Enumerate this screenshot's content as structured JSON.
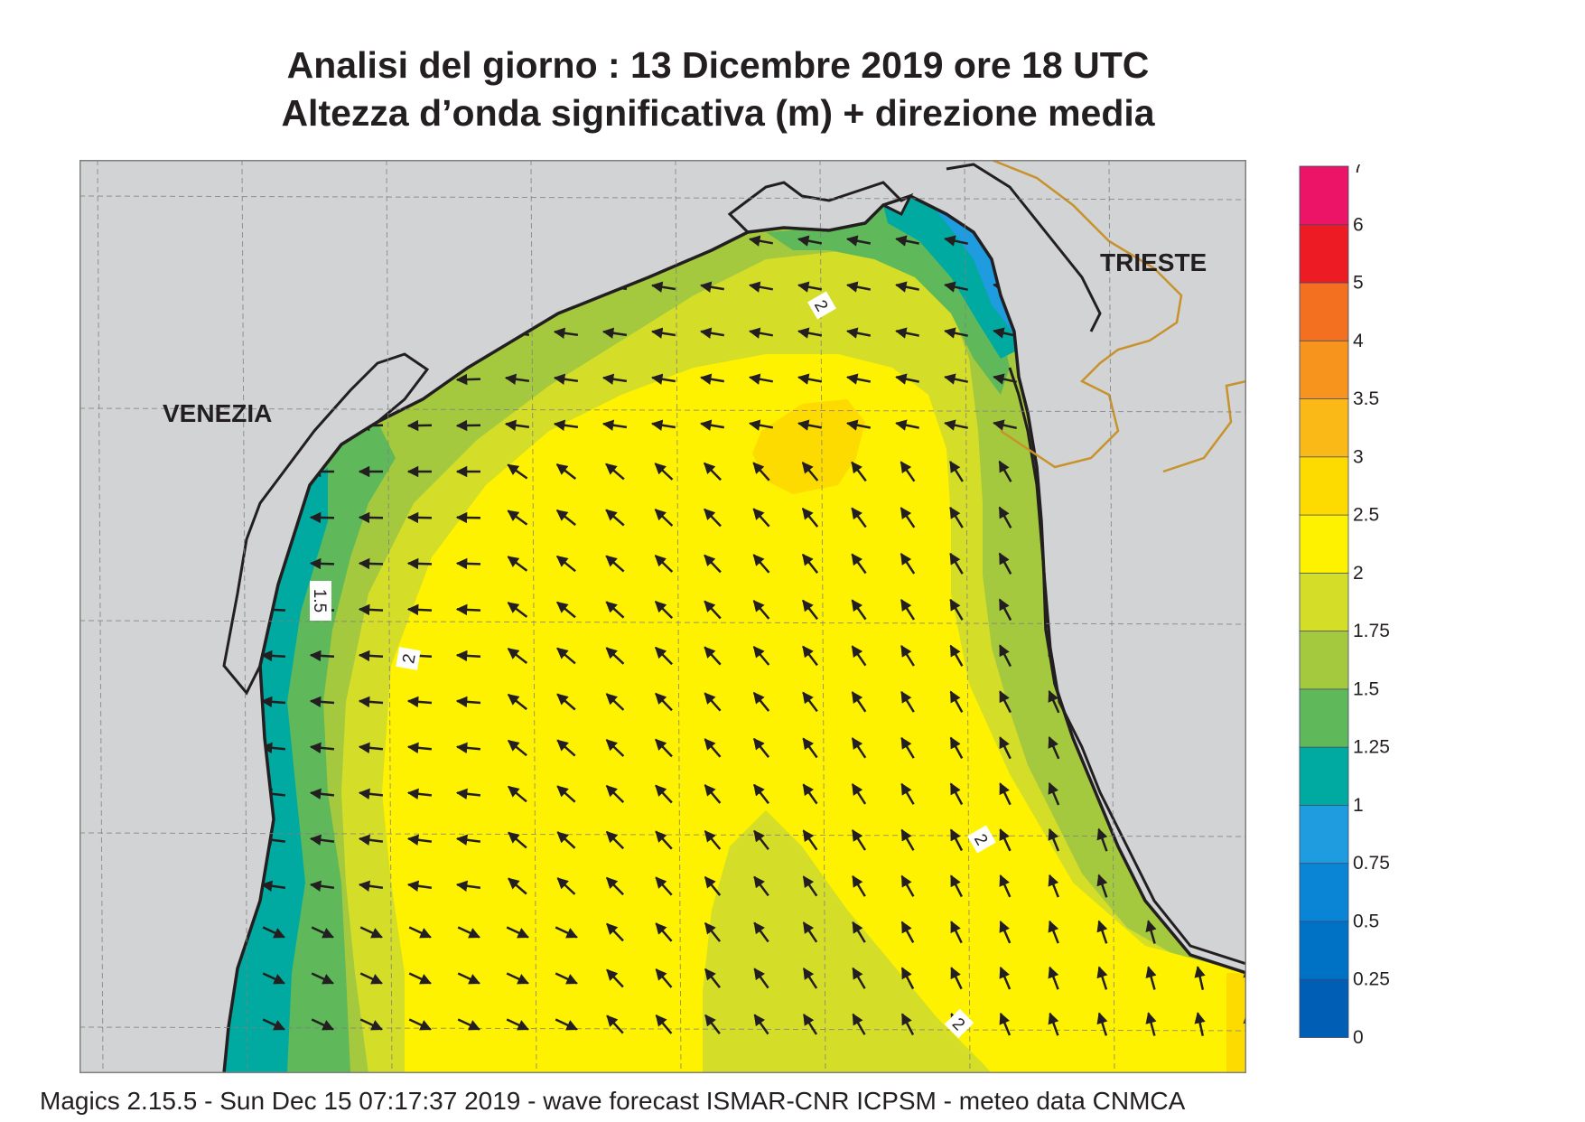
{
  "title": {
    "line1": "Analisi del giorno :  13 Dicembre  2019   ore 18 UTC",
    "line2": "Altezza d’onda significativa (m) + direzione media"
  },
  "footer": "Magics 2.15.5 - Sun Dec 15 07:17:37 2019 - wave forecast  ISMAR-CNR  ICPSM - meteo data   CNMCA",
  "labels": {
    "venezia": "VENEZIA",
    "trieste": "TRIESTE",
    "contour_labels": [
      "2",
      "1.5",
      "2",
      "2",
      "2",
      "2"
    ]
  },
  "legend": {
    "unit": "m",
    "levels": [
      "0",
      "0.25",
      "0.5",
      "0.75",
      "1",
      "1.25",
      "1.5",
      "1.75",
      "2",
      "2.5",
      "3",
      "3.5",
      "4",
      "5",
      "6",
      "7"
    ],
    "colors": [
      "#005fb4",
      "#0072c6",
      "#0a84d4",
      "#1f9be0",
      "#00aaa1",
      "#5fb95a",
      "#a5c93e",
      "#d4de29",
      "#fff200",
      "#fedb00",
      "#fbb917",
      "#f7941d",
      "#f37021",
      "#ed1c24",
      "#ec1467"
    ]
  },
  "colors": {
    "land": "#d1d3d4",
    "coast": "#231f20",
    "border": "#c8922c",
    "grid": "#808080",
    "arrow": "#231f20"
  }
}
